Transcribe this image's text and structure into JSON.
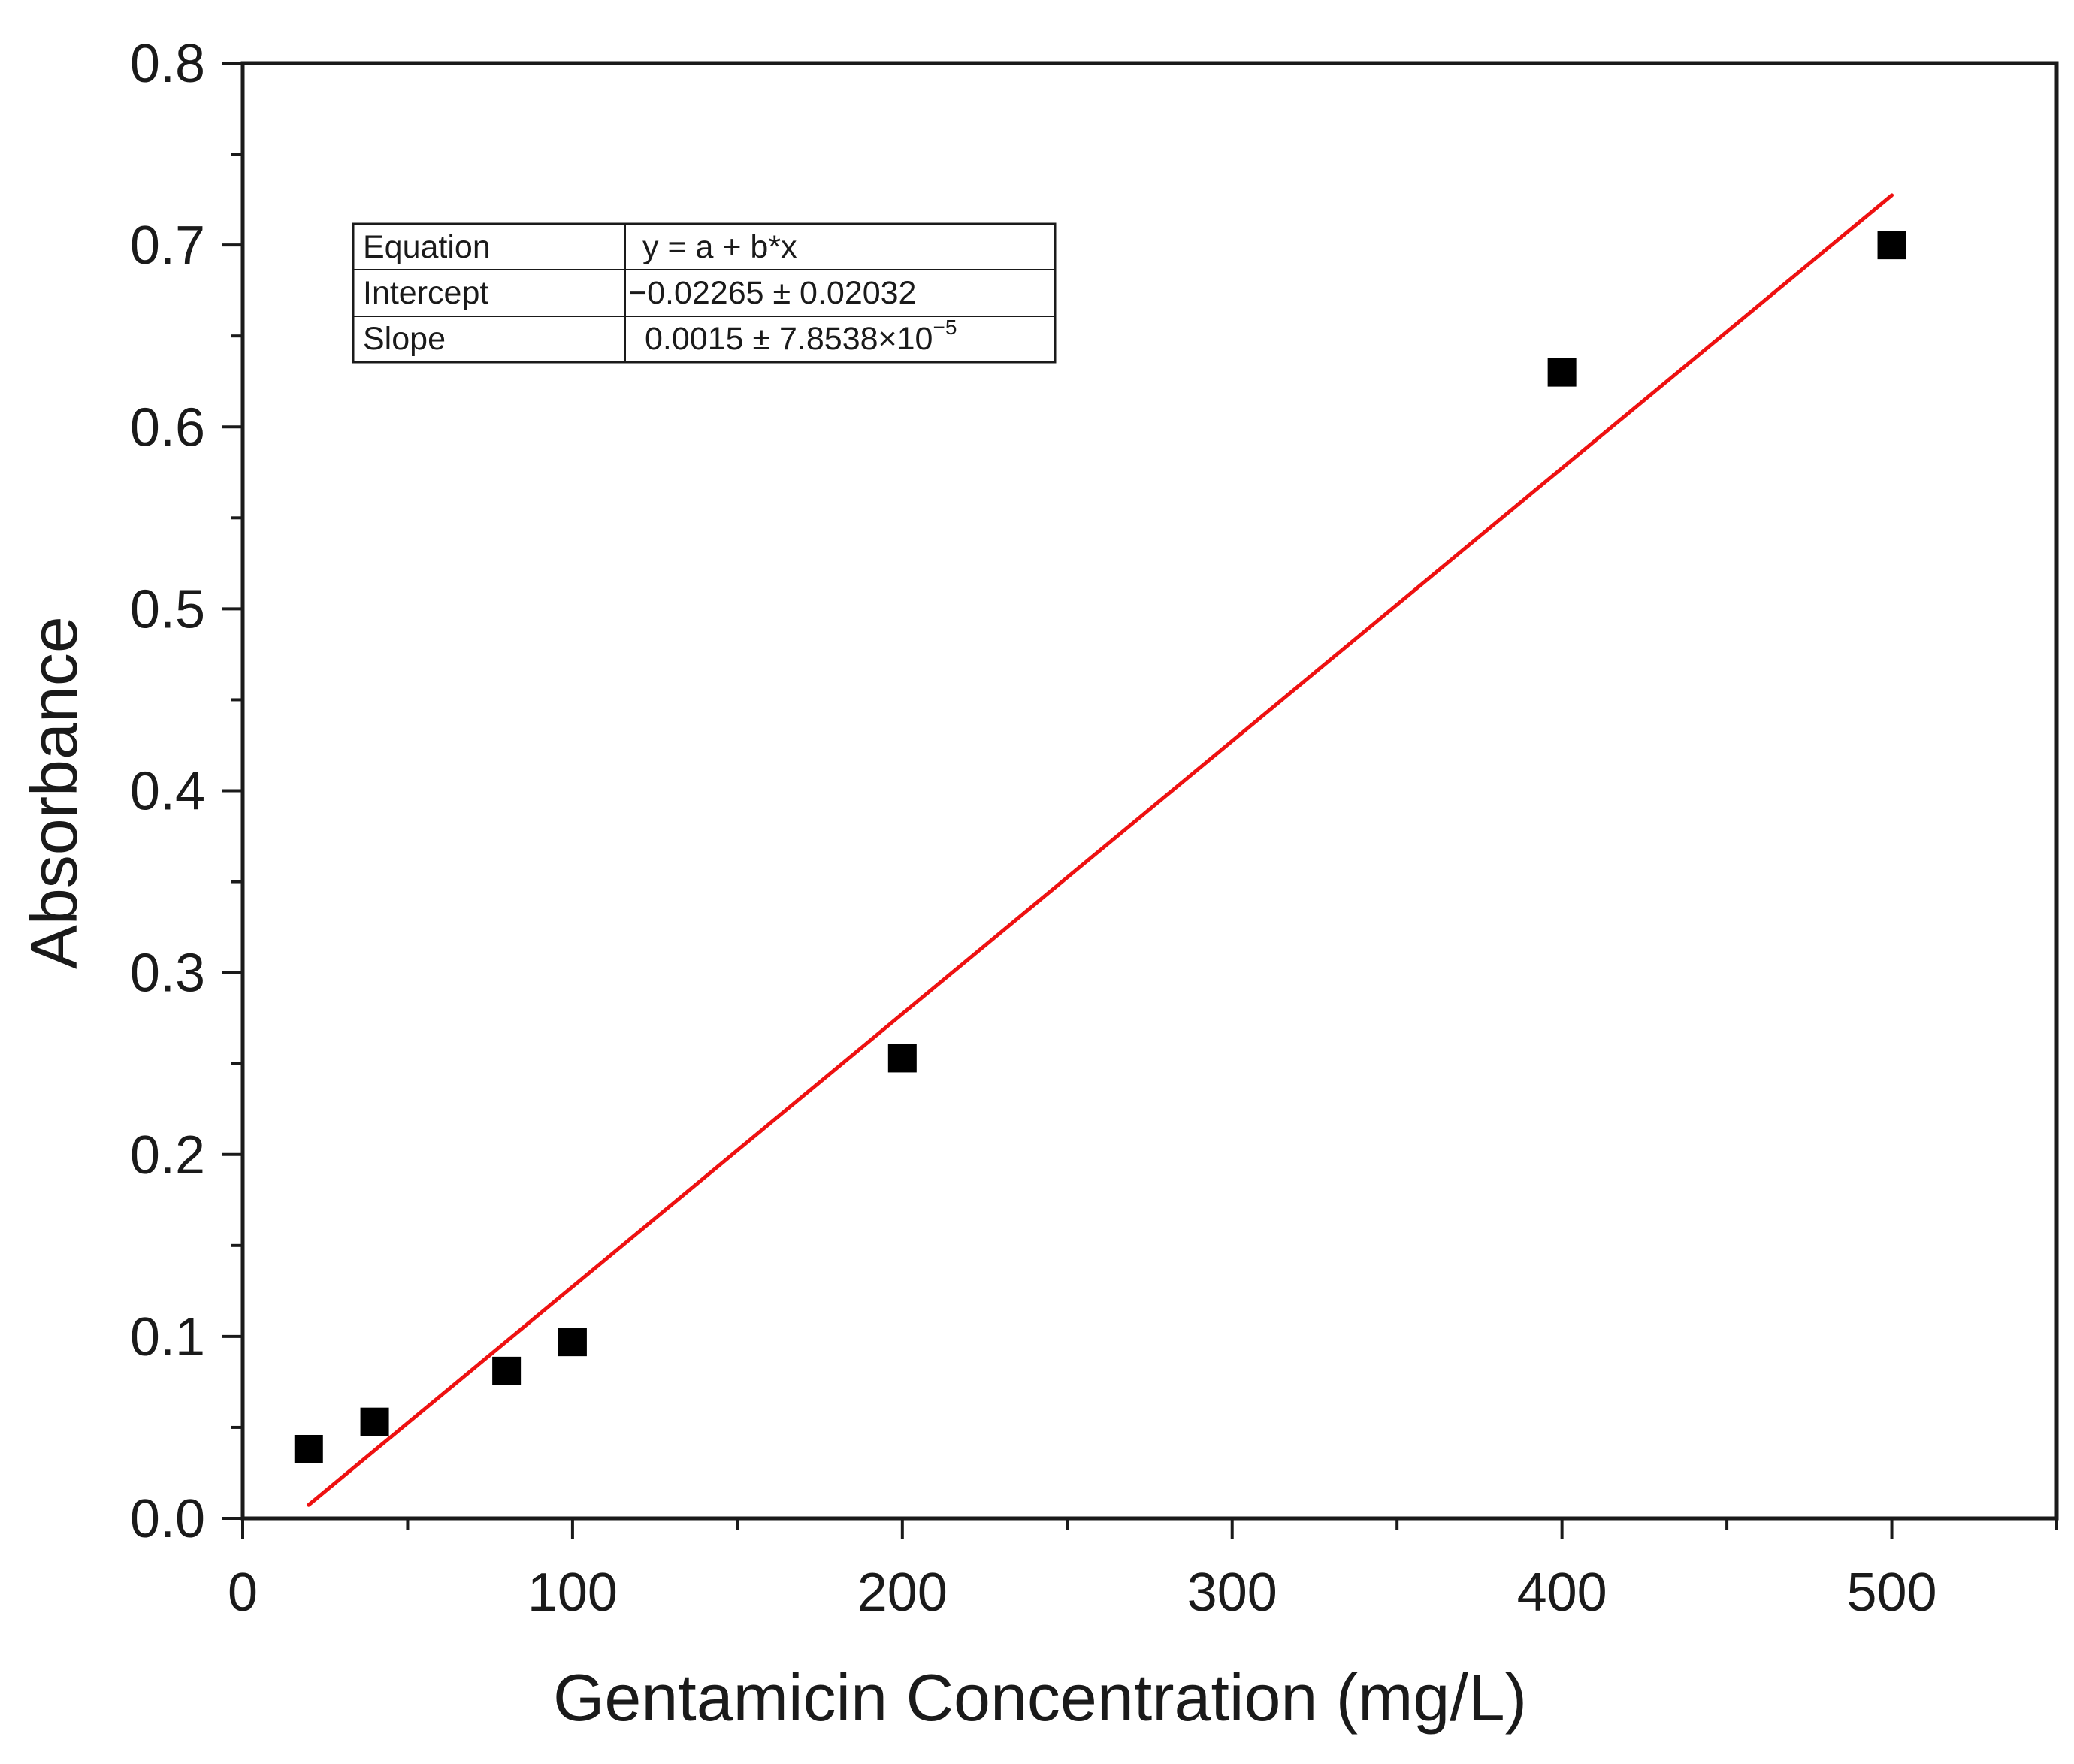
{
  "chart_data": {
    "type": "scatter",
    "title": "",
    "xlabel": "Gentamicin Concentration (mg/L)",
    "ylabel": "Absorbance",
    "xlim": [
      0,
      550
    ],
    "ylim": [
      0,
      0.8
    ],
    "x_ticks": [
      0,
      100,
      200,
      300,
      400,
      500
    ],
    "x_tick_labels": [
      "0",
      "100",
      "200",
      "300",
      "400",
      "500"
    ],
    "x_minor_ticks": [
      50,
      150,
      250,
      350,
      450,
      550
    ],
    "y_ticks": [
      0,
      0.1,
      0.2,
      0.3,
      0.4,
      0.5,
      0.6,
      0.7,
      0.8
    ],
    "y_tick_labels": [
      "0.0",
      "0.1",
      "0.2",
      "0.3",
      "0.4",
      "0.5",
      "0.6",
      "0.7",
      "0.8"
    ],
    "y_minor_ticks": [
      0.05,
      0.15,
      0.25,
      0.35,
      0.45,
      0.55,
      0.65,
      0.75
    ],
    "grid": false,
    "series": [
      {
        "name": "Absorbance",
        "marker": "square",
        "color": "#000000",
        "x": [
          20,
          40,
          80,
          100,
          200,
          400,
          500
        ],
        "y": [
          0.038,
          0.053,
          0.081,
          0.097,
          0.253,
          0.63,
          0.7
        ]
      }
    ],
    "fit_line": {
      "color": "#ee1111",
      "intercept": -0.02265,
      "slope": 0.0015,
      "x_range": [
        20,
        500
      ]
    },
    "annotation_table": {
      "position": "top-left",
      "rows": [
        {
          "label": "Equation",
          "value": "y = a + b*x",
          "value_sup": ""
        },
        {
          "label": "Intercept",
          "value": "−0.02265 ± 0.02032",
          "value_sup": ""
        },
        {
          "label": "Slope",
          "value": "0.0015 ± 7.8538×10",
          "value_sup": "−5"
        }
      ]
    }
  }
}
